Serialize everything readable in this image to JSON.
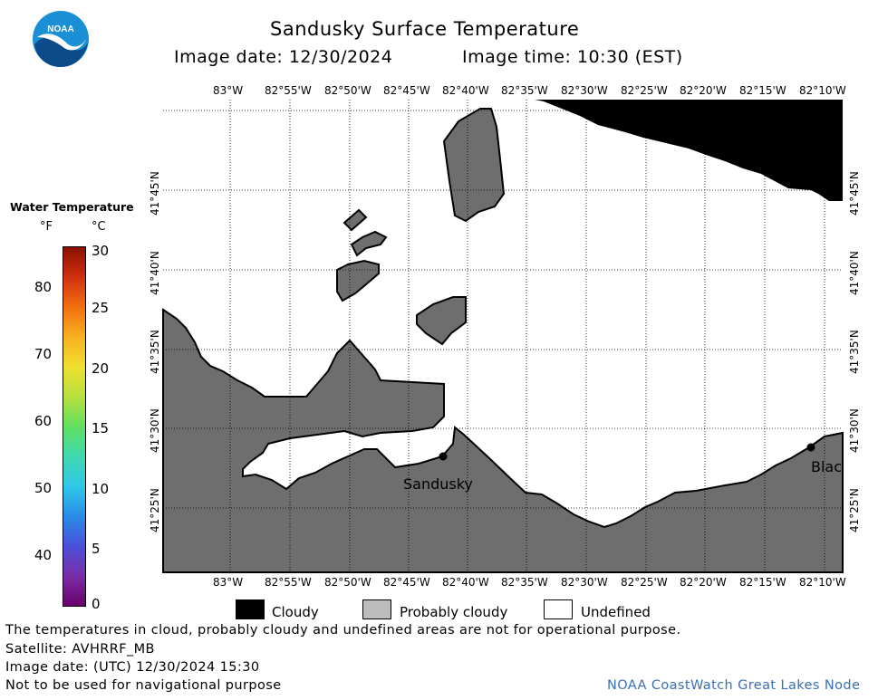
{
  "header": {
    "title": "Sandusky Surface Temperature",
    "image_date": "Image date: 12/30/2024",
    "image_time": "Image time: 10:30 (EST)"
  },
  "logo": {
    "text": "NOAA",
    "colors": {
      "circle": "#1a8fd6",
      "bird": "#ffffff",
      "dark": "#0d4a8a"
    }
  },
  "map": {
    "lon_labels": [
      "83°W",
      "82°55'W",
      "82°50'W",
      "82°45'W",
      "82°40'W",
      "82°35'W",
      "82°30'W",
      "82°25'W",
      "82°20'W",
      "82°15'W",
      "82°10'W"
    ],
    "lat_labels": [
      "41°45'N",
      "41°40'N",
      "41°35'N",
      "41°30'N",
      "41°25'N"
    ],
    "places": [
      {
        "name": "Sandusky"
      },
      {
        "name": "Blac"
      }
    ],
    "colors": {
      "land": "#6e6e6e",
      "cloud": "#000000",
      "water": "#ffffff",
      "grid": "#000000"
    }
  },
  "colorbar": {
    "title": "Water Temperature",
    "unit_f": "°F",
    "unit_c": "°C",
    "f_ticks": [
      "80",
      "70",
      "60",
      "50",
      "40"
    ],
    "c_ticks": [
      "30",
      "25",
      "20",
      "15",
      "10",
      "5",
      "0"
    ],
    "gradient": [
      "#6a006a",
      "#7a2ea8",
      "#4a50d8",
      "#2a8ce8",
      "#30c8e8",
      "#40d8b0",
      "#60e060",
      "#b8e040",
      "#f0e030",
      "#f8b020",
      "#f07010",
      "#d03010",
      "#8a1000"
    ]
  },
  "legend": {
    "cloudy": "Cloudy",
    "probably_cloudy": "Probably cloudy",
    "undefined": "Undefined"
  },
  "footer": {
    "disclaimer": "The temperatures in cloud, probably cloudy and undefined areas are not for operational purpose.",
    "satellite": "Satellite: AVHRRF_MB",
    "utc_date": "Image date: (UTC) 12/30/2024  15:30",
    "navigation": "Not to be used for navigational purpose",
    "node": "NOAA CoastWatch Great Lakes Node"
  }
}
